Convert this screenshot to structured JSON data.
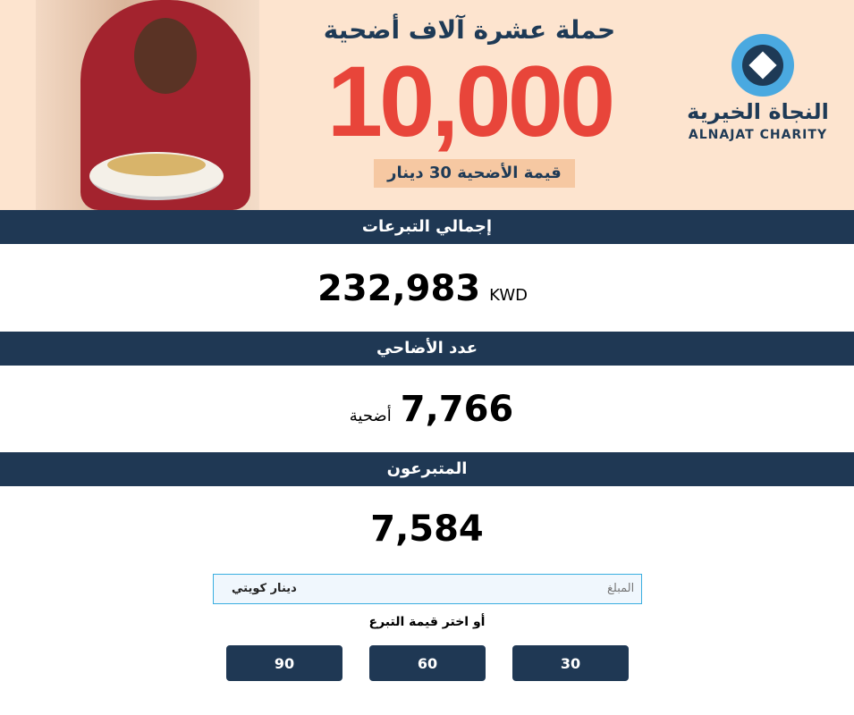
{
  "banner": {
    "campaign_title": "حملة عشرة آلاف أضحية",
    "goal": "10,000",
    "price_note": "قيمة الأضحية 30 دينار",
    "logo_ar": "النجاة الخيرية",
    "logo_en": "ALNAJAT CHARITY"
  },
  "stats": {
    "total_label": "إجمالي التبرعات",
    "total_value": "232,983",
    "total_unit": "KWD",
    "sacrifices_label": "عدد الأضاحي",
    "sacrifices_value": "7,766",
    "sacrifices_unit": "أضحية",
    "donors_label": "المتبرعون",
    "donors_value": "7,584"
  },
  "donation": {
    "amount_placeholder": "المبلغ",
    "currency": "دينار كويتي",
    "choose_label": "أو اختر قيمة التبرع",
    "amounts": [
      "30",
      "60",
      "90"
    ]
  },
  "colors": {
    "navy": "#1f3854",
    "red": "#e8453a",
    "peach": "#fde4cf",
    "input_border": "#3aaee0"
  }
}
